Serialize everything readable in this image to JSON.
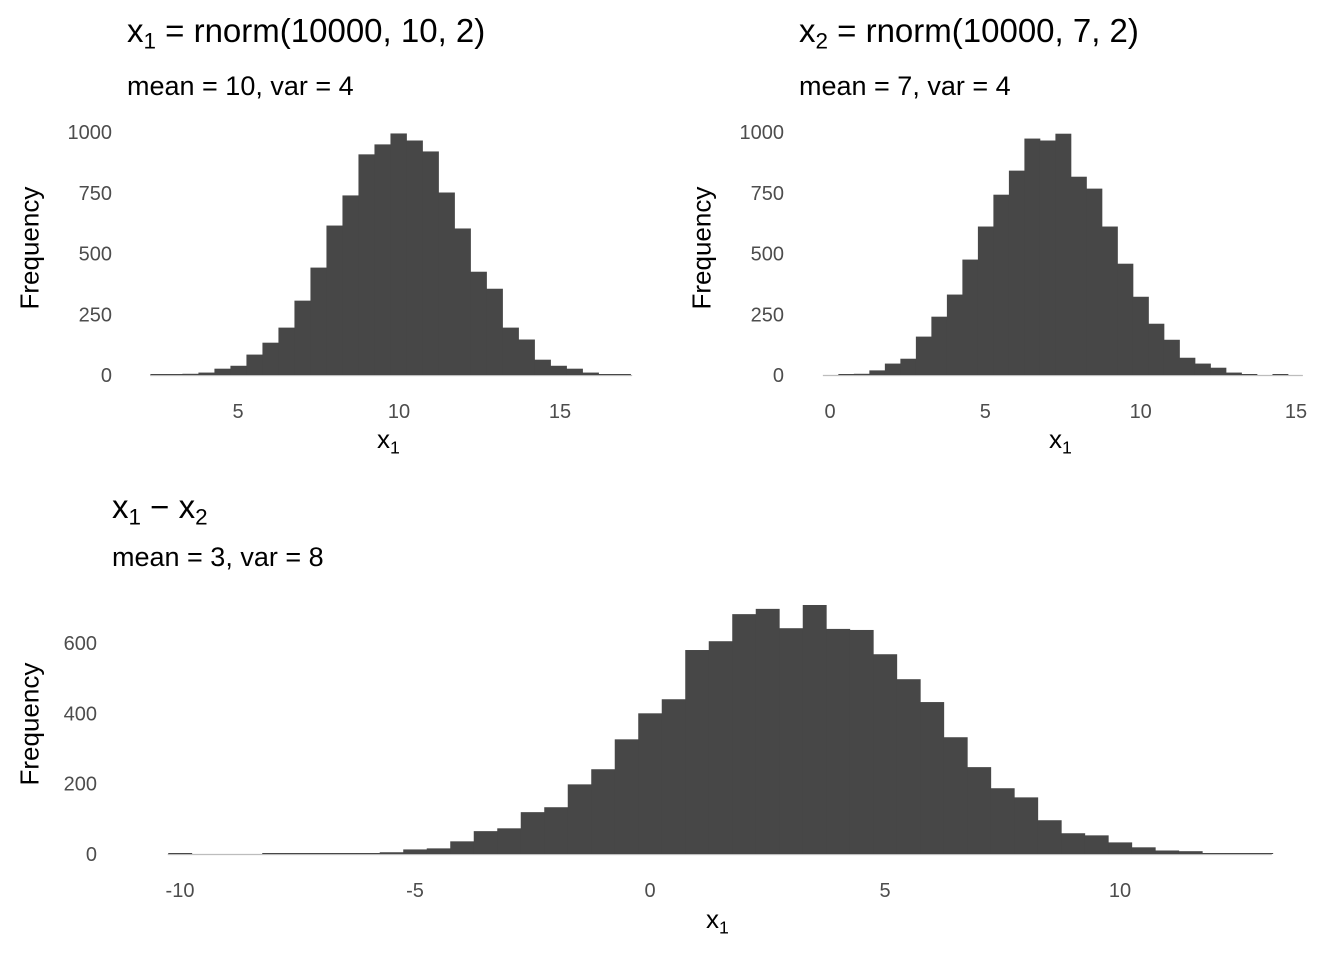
{
  "colors": {
    "bar": "#474747",
    "baseline": "#bdbdbd",
    "tick_text": "#4d4d4d"
  },
  "chart_data": [
    {
      "type": "bar",
      "histogram": true,
      "title": {
        "var": "x",
        "sub": "1",
        "rest": " = rnorm(10000, 10, 2)"
      },
      "subtitle": "mean = 10, var = 4",
      "xlabel": {
        "var": "x",
        "sub": "1"
      },
      "ylabel": "Frequency",
      "xlim": [
        2.27,
        17.24
      ],
      "ylim": [
        0,
        1000
      ],
      "xticks": [
        5,
        10,
        15
      ],
      "yticks": [
        0,
        250,
        500,
        750,
        1000
      ],
      "bin_start": 2.28,
      "bin_width": 0.497,
      "counts": [
        1,
        2,
        5,
        10,
        26,
        38,
        84,
        133,
        195,
        306,
        442,
        615,
        739,
        908,
        949,
        994,
        965,
        920,
        751,
        603,
        425,
        355,
        195,
        146,
        63,
        38,
        26,
        10,
        2,
        1
      ],
      "grid": false
    },
    {
      "type": "bar",
      "histogram": true,
      "title": {
        "var": "x",
        "sub": "2",
        "rest": " = rnorm(10000, 7, 2)"
      },
      "subtitle": "mean = 7, var = 4",
      "xlabel": {
        "var": "x",
        "sub": "1"
      },
      "ylabel": "Frequency",
      "xlim": [
        -0.23,
        15.22
      ],
      "ylim": [
        0,
        1000
      ],
      "xticks": [
        0,
        5,
        10,
        15
      ],
      "yticks": [
        0,
        250,
        500,
        750,
        1000
      ],
      "bin_start": -0.23,
      "bin_width": 0.499,
      "counts": [
        0,
        3,
        5,
        19,
        47,
        67,
        158,
        240,
        331,
        475,
        611,
        742,
        841,
        973,
        965,
        993,
        816,
        767,
        611,
        458,
        322,
        211,
        145,
        71,
        47,
        30,
        10,
        1,
        0,
        1
      ],
      "grid": false
    },
    {
      "type": "bar",
      "histogram": true,
      "title": {
        "var": "x",
        "sub": "1",
        "rest": " − ",
        "var2": "x",
        "sub2": "2"
      },
      "subtitle": "mean = 3, var = 8",
      "xlabel": {
        "var": "x",
        "sub": "1"
      },
      "ylabel": "Frequency",
      "xlim": [
        -10.26,
        13.23
      ],
      "ylim": [
        0,
        708
      ],
      "xticks": [
        -10,
        -5,
        0,
        5,
        10
      ],
      "yticks": [
        0,
        200,
        400,
        600
      ],
      "bin_start": -10.25,
      "bin_width": 0.5,
      "counts": [
        1,
        0,
        0,
        0,
        1,
        2,
        1,
        2,
        1,
        5,
        13,
        16,
        36,
        65,
        73,
        119,
        133,
        198,
        241,
        326,
        400,
        440,
        580,
        605,
        682,
        697,
        642,
        708,
        640,
        637,
        568,
        497,
        432,
        332,
        247,
        187,
        161,
        96,
        59,
        53,
        33,
        19,
        10,
        8,
        2,
        1,
        1
      ],
      "grid": false
    }
  ]
}
